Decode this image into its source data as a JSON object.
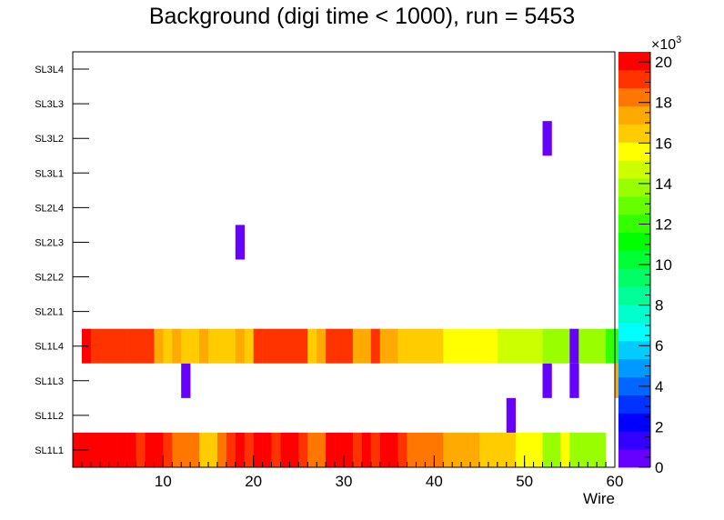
{
  "chart_data": {
    "type": "heatmap",
    "title": "Background (digi time < 1000), run = 5453",
    "xlabel": "Wire",
    "ylabel": "",
    "xlim": [
      0,
      60
    ],
    "x_ticks": [
      10,
      20,
      30,
      40,
      50,
      60
    ],
    "y_categories": [
      "SL1L1",
      "SL1L2",
      "SL1L3",
      "SL1L4",
      "SL2L1",
      "SL2L2",
      "SL2L3",
      "SL2L4",
      "SL3L1",
      "SL3L2",
      "SL3L3",
      "SL3L4"
    ],
    "zlim": [
      0,
      20500
    ],
    "z_ticks": [
      0,
      2,
      4,
      6,
      8,
      10,
      12,
      14,
      16,
      18,
      20
    ],
    "z_tick_labels": [
      "0",
      "2",
      "4",
      "6",
      "8",
      "10",
      "12",
      "14",
      "16",
      "18",
      "20"
    ],
    "z_multiplier_base": "×10",
    "z_multiplier_exp": "3",
    "palette": [
      "#6600ff",
      "#3300ff",
      "#0000ff",
      "#0033ff",
      "#0066ff",
      "#0099ff",
      "#00ccff",
      "#00ffff",
      "#00ffcc",
      "#00ff99",
      "#00ff66",
      "#00ff33",
      "#00ff00",
      "#33ff00",
      "#66ff00",
      "#99ff00",
      "#ccff00",
      "#ffff00",
      "#ffcc00",
      "#ffaa00",
      "#ff7700",
      "#ff3300",
      "#ff0000"
    ],
    "rows": [
      {
        "label": "SL1L1",
        "values": [
          20300,
          20300,
          20300,
          20300,
          20300,
          20300,
          20200,
          19500,
          20000,
          20300,
          19200,
          18300,
          18300,
          18300,
          16800,
          16800,
          18300,
          19500,
          20300,
          19200,
          20300,
          20300,
          19500,
          20300,
          20300,
          19500,
          18300,
          18300,
          20300,
          20300,
          20300,
          19200,
          20300,
          19500,
          20300,
          20300,
          19200,
          18300,
          18300,
          18300,
          18300,
          17200,
          17200,
          17200,
          17200,
          16200,
          16200,
          16200,
          16200,
          15800,
          15800,
          15800,
          14200,
          14200,
          15500,
          14200,
          14200,
          14200,
          14200
        ]
      },
      {
        "label": "SL1L2",
        "values": [
          null,
          null,
          null,
          null,
          null,
          null,
          null,
          null,
          null,
          null,
          null,
          null,
          null,
          null,
          null,
          null,
          null,
          null,
          null,
          null,
          null,
          null,
          null,
          null,
          null,
          null,
          null,
          null,
          null,
          null,
          null,
          null,
          null,
          null,
          null,
          null,
          null,
          null,
          null,
          null,
          null,
          null,
          null,
          null,
          null,
          null,
          null,
          null,
          300
        ]
      },
      {
        "label": "SL1L3",
        "values": [
          null,
          null,
          null,
          null,
          null,
          null,
          null,
          null,
          null,
          null,
          null,
          null,
          300,
          null,
          null,
          null,
          null,
          null,
          null,
          null,
          null,
          null,
          null,
          null,
          null,
          null,
          null,
          null,
          null,
          null,
          null,
          null,
          null,
          null,
          null,
          null,
          null,
          null,
          null,
          null,
          null,
          null,
          null,
          null,
          null,
          null,
          null,
          null,
          null,
          null,
          null,
          null,
          300,
          null,
          null,
          300,
          null,
          null,
          null,
          null,
          17500
        ]
      },
      {
        "label": "SL1L4",
        "values": [
          null,
          20500,
          18800,
          18800,
          18800,
          18800,
          18800,
          18800,
          18800,
          17500,
          16500,
          17500,
          16500,
          16500,
          17500,
          16500,
          16500,
          16500,
          17500,
          16500,
          18800,
          18800,
          18800,
          18800,
          18800,
          18800,
          16500,
          17500,
          18800,
          18800,
          18800,
          17500,
          17500,
          18800,
          17500,
          17500,
          16300,
          16300,
          16300,
          16300,
          16300,
          15800,
          15800,
          15800,
          15800,
          15800,
          15800,
          14500,
          14500,
          14500,
          14500,
          14500,
          13800,
          13800,
          13800,
          300,
          13500,
          13500,
          13500,
          12300,
          12300
        ]
      },
      {
        "label": "SL2L1",
        "values": []
      },
      {
        "label": "SL2L2",
        "values": []
      },
      {
        "label": "SL2L3",
        "values": [
          null,
          null,
          null,
          null,
          null,
          null,
          null,
          null,
          null,
          null,
          null,
          null,
          null,
          null,
          null,
          null,
          null,
          null,
          300
        ]
      },
      {
        "label": "SL2L4",
        "values": []
      },
      {
        "label": "SL3L1",
        "values": []
      },
      {
        "label": "SL3L2",
        "values": [
          null,
          null,
          null,
          null,
          null,
          null,
          null,
          null,
          null,
          null,
          null,
          null,
          null,
          null,
          null,
          null,
          null,
          null,
          null,
          null,
          null,
          null,
          null,
          null,
          null,
          null,
          null,
          null,
          null,
          null,
          null,
          null,
          null,
          null,
          null,
          null,
          null,
          null,
          null,
          null,
          null,
          null,
          null,
          null,
          null,
          null,
          null,
          null,
          null,
          null,
          null,
          null,
          300
        ]
      },
      {
        "label": "SL3L3",
        "values": []
      },
      {
        "label": "SL3L4",
        "values": []
      }
    ]
  }
}
